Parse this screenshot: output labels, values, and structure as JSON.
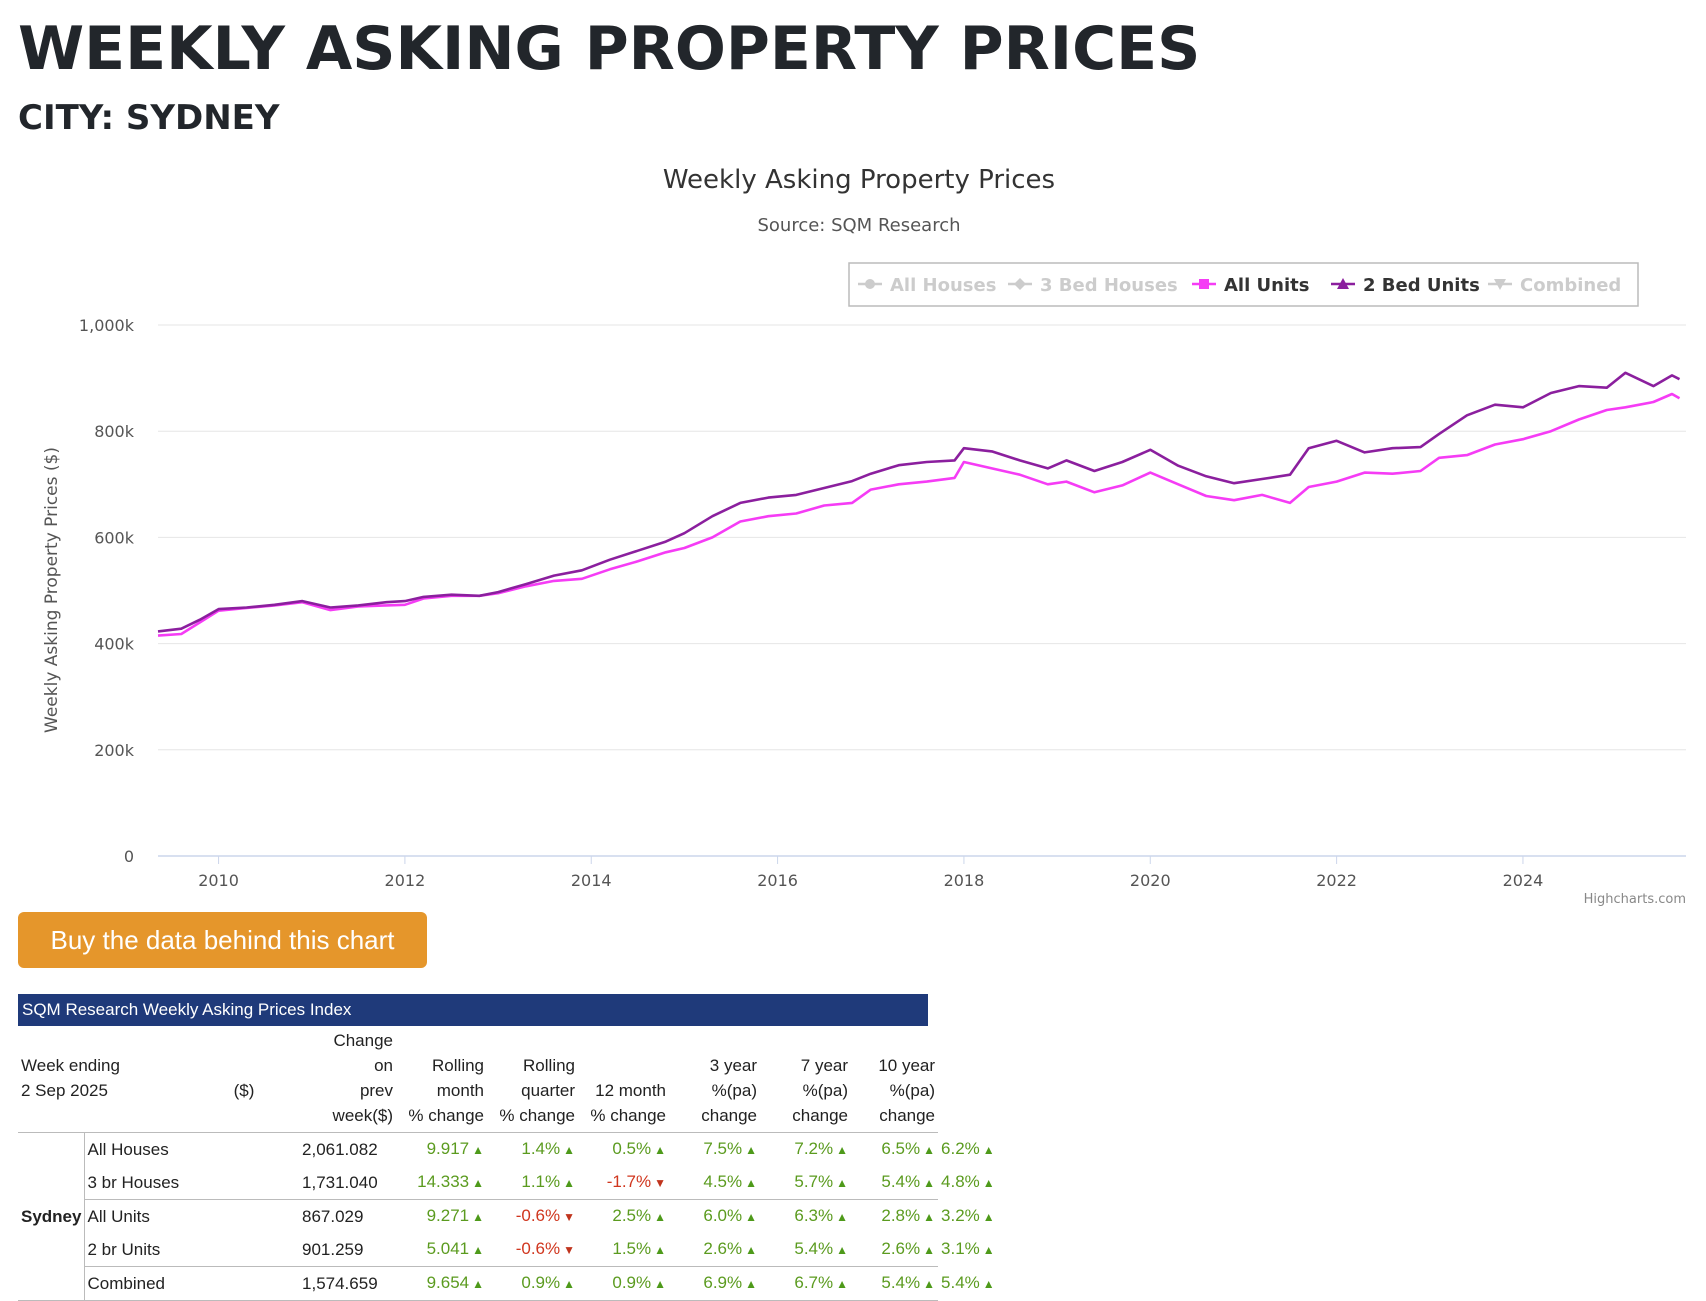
{
  "page": {
    "title": "WEEKLY ASKING PROPERTY PRICES",
    "city_heading": "CITY: SYDNEY"
  },
  "button": {
    "label": "Buy the data behind this chart"
  },
  "chart_data": {
    "type": "line",
    "title": "Weekly Asking Property Prices",
    "subtitle": "Source: SQM Research",
    "ylabel": "Weekly Asking Property Prices ($)",
    "xlabel": "",
    "ylim": [
      0,
      1000000
    ],
    "xlim": [
      2009.35,
      2025.75
    ],
    "yticks": [
      0,
      200000,
      400000,
      600000,
      800000,
      1000000
    ],
    "ytick_labels": [
      "0",
      "200k",
      "400k",
      "600k",
      "800k",
      "1,000k"
    ],
    "xticks": [
      2010,
      2012,
      2014,
      2016,
      2018,
      2020,
      2022,
      2024
    ],
    "xtick_labels": [
      "2010",
      "2012",
      "2014",
      "2016",
      "2018",
      "2020",
      "2022",
      "2024"
    ],
    "grid": true,
    "legend_position": "top-right",
    "credits": "Highcharts.com",
    "legend": [
      {
        "name": "All Houses",
        "visible": false,
        "color": "#cccccc",
        "marker": "circle"
      },
      {
        "name": "3 Bed Houses",
        "visible": false,
        "color": "#cccccc",
        "marker": "diamond"
      },
      {
        "name": "All Units",
        "visible": true,
        "color": "#f53cf5",
        "marker": "square"
      },
      {
        "name": "2 Bed Units",
        "visible": true,
        "color": "#8b1f9e",
        "marker": "triangle"
      },
      {
        "name": "Combined",
        "visible": false,
        "color": "#cccccc",
        "marker": "triangle-down"
      }
    ],
    "series": [
      {
        "name": "All Units",
        "color": "#f53cf5",
        "x": [
          2009.35,
          2009.6,
          2009.8,
          2010.0,
          2010.3,
          2010.6,
          2010.9,
          2011.2,
          2011.5,
          2011.8,
          2012.0,
          2012.2,
          2012.5,
          2012.8,
          2013.0,
          2013.3,
          2013.6,
          2013.9,
          2014.2,
          2014.5,
          2014.8,
          2015.0,
          2015.3,
          2015.6,
          2015.9,
          2016.2,
          2016.5,
          2016.8,
          2017.0,
          2017.3,
          2017.6,
          2017.9,
          2018.0,
          2018.3,
          2018.6,
          2018.9,
          2019.1,
          2019.4,
          2019.7,
          2020.0,
          2020.3,
          2020.6,
          2020.9,
          2021.2,
          2021.5,
          2021.7,
          2022.0,
          2022.3,
          2022.6,
          2022.9,
          2023.1,
          2023.4,
          2023.7,
          2024.0,
          2024.3,
          2024.6,
          2024.9,
          2025.1,
          2025.4,
          2025.6,
          2025.68
        ],
        "values": [
          415000,
          418000,
          440000,
          462000,
          467000,
          472000,
          478000,
          463000,
          470000,
          472000,
          473000,
          485000,
          490000,
          490000,
          495000,
          508000,
          518000,
          522000,
          540000,
          555000,
          572000,
          580000,
          600000,
          630000,
          640000,
          645000,
          660000,
          665000,
          690000,
          700000,
          705000,
          712000,
          742000,
          730000,
          718000,
          700000,
          705000,
          685000,
          698000,
          722000,
          700000,
          678000,
          670000,
          680000,
          665000,
          695000,
          705000,
          722000,
          720000,
          725000,
          750000,
          755000,
          775000,
          785000,
          800000,
          822000,
          840000,
          845000,
          855000,
          870000,
          862000
        ]
      },
      {
        "name": "2 Bed Units",
        "color": "#8b1f9e",
        "x": [
          2009.35,
          2009.6,
          2009.8,
          2010.0,
          2010.3,
          2010.6,
          2010.9,
          2011.2,
          2011.5,
          2011.8,
          2012.0,
          2012.2,
          2012.5,
          2012.8,
          2013.0,
          2013.3,
          2013.6,
          2013.9,
          2014.2,
          2014.5,
          2014.8,
          2015.0,
          2015.3,
          2015.6,
          2015.9,
          2016.2,
          2016.5,
          2016.8,
          2017.0,
          2017.3,
          2017.6,
          2017.9,
          2018.0,
          2018.3,
          2018.6,
          2018.9,
          2019.1,
          2019.4,
          2019.7,
          2020.0,
          2020.3,
          2020.6,
          2020.9,
          2021.2,
          2021.5,
          2021.7,
          2022.0,
          2022.3,
          2022.6,
          2022.9,
          2023.1,
          2023.4,
          2023.7,
          2024.0,
          2024.3,
          2024.6,
          2024.9,
          2025.1,
          2025.4,
          2025.6,
          2025.68
        ],
        "values": [
          423000,
          428000,
          445000,
          465000,
          468000,
          473000,
          480000,
          468000,
          472000,
          478000,
          480000,
          488000,
          492000,
          490000,
          497000,
          512000,
          528000,
          538000,
          558000,
          575000,
          592000,
          608000,
          640000,
          665000,
          675000,
          680000,
          693000,
          706000,
          720000,
          736000,
          742000,
          745000,
          768000,
          762000,
          745000,
          730000,
          745000,
          725000,
          742000,
          765000,
          735000,
          715000,
          702000,
          710000,
          718000,
          768000,
          782000,
          760000,
          768000,
          770000,
          795000,
          830000,
          850000,
          845000,
          872000,
          885000,
          882000,
          910000,
          885000,
          905000,
          898000
        ]
      }
    ]
  },
  "table": {
    "caption": "SQM Research Weekly Asking Prices Index",
    "week_label": "Week ending",
    "week_date": "2 Sep 2025",
    "headers": {
      "price": "($)",
      "change_prev_week": [
        "Change",
        "on",
        "prev",
        "week($)"
      ],
      "rolling_month": [
        "Rolling",
        "month",
        "% change"
      ],
      "rolling_quarter": [
        "Rolling",
        "quarter",
        "% change"
      ],
      "twelve_month": [
        "12 month",
        "% change"
      ],
      "three_year": [
        "3 year",
        "%(pa)",
        "change"
      ],
      "seven_year": [
        "7 year",
        "%(pa)",
        "change"
      ],
      "ten_year": [
        "10 year",
        "%(pa)",
        "change"
      ]
    },
    "city": "Sydney",
    "rows": [
      {
        "type": "All Houses",
        "price": "2,061.082",
        "wk": "9.917",
        "wk_dir": "up",
        "m": "1.4%",
        "m_dir": "up",
        "q": "0.5%",
        "q_dir": "up",
        "y12": "7.5%",
        "y12_dir": "up",
        "y3": "7.2%",
        "y3_dir": "up",
        "y7": "6.5%",
        "y7_dir": "up",
        "y10": "6.2%",
        "y10_dir": "up"
      },
      {
        "type": "3 br Houses",
        "price": "1,731.040",
        "wk": "14.333",
        "wk_dir": "up",
        "m": "1.1%",
        "m_dir": "up",
        "q": "-1.7%",
        "q_dir": "down",
        "y12": "4.5%",
        "y12_dir": "up",
        "y3": "5.7%",
        "y3_dir": "up",
        "y7": "5.4%",
        "y7_dir": "up",
        "y10": "4.8%",
        "y10_dir": "up"
      },
      {
        "type": "All Units",
        "price": "867.029",
        "wk": "9.271",
        "wk_dir": "up",
        "m": "-0.6%",
        "m_dir": "down",
        "q": "2.5%",
        "q_dir": "up",
        "y12": "6.0%",
        "y12_dir": "up",
        "y3": "6.3%",
        "y3_dir": "up",
        "y7": "2.8%",
        "y7_dir": "up",
        "y10": "3.2%",
        "y10_dir": "up"
      },
      {
        "type": "2 br Units",
        "price": "901.259",
        "wk": "5.041",
        "wk_dir": "up",
        "m": "-0.6%",
        "m_dir": "down",
        "q": "1.5%",
        "q_dir": "up",
        "y12": "2.6%",
        "y12_dir": "up",
        "y3": "5.4%",
        "y3_dir": "up",
        "y7": "2.6%",
        "y7_dir": "up",
        "y10": "3.1%",
        "y10_dir": "up"
      },
      {
        "type": "Combined",
        "price": "1,574.659",
        "wk": "9.654",
        "wk_dir": "up",
        "m": "0.9%",
        "m_dir": "up",
        "q": "0.9%",
        "q_dir": "up",
        "y12": "6.9%",
        "y12_dir": "up",
        "y3": "6.7%",
        "y3_dir": "up",
        "y7": "5.4%",
        "y7_dir": "up",
        "y10": "5.4%",
        "y10_dir": "up"
      }
    ]
  }
}
